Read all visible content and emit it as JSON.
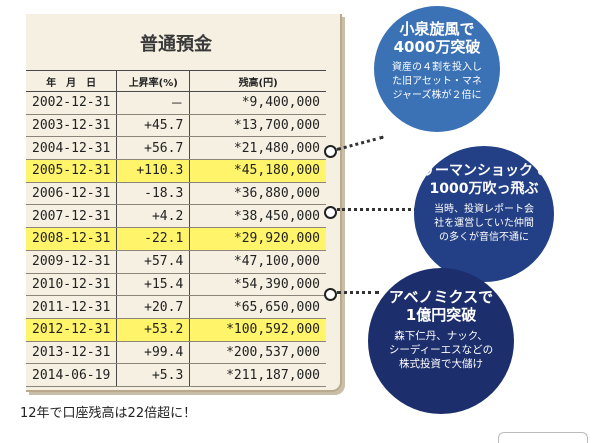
{
  "passbook": {
    "title": "普通預金",
    "headers": [
      "年　月　日",
      "上昇率(%)",
      "残高(円)"
    ],
    "rows": [
      {
        "date": "2002-12-31",
        "rate": "－",
        "balance": "*9,400,000",
        "hl": false
      },
      {
        "date": "2003-12-31",
        "rate": "+45.7",
        "balance": "*13,700,000",
        "hl": false
      },
      {
        "date": "2004-12-31",
        "rate": "+56.7",
        "balance": "*21,480,000",
        "hl": false
      },
      {
        "date": "2005-12-31",
        "rate": "+110.3",
        "balance": "*45,180,000",
        "hl": true
      },
      {
        "date": "2006-12-31",
        "rate": "-18.3",
        "balance": "*36,880,000",
        "hl": false
      },
      {
        "date": "2007-12-31",
        "rate": "+4.2",
        "balance": "*38,450,000",
        "hl": false
      },
      {
        "date": "2008-12-31",
        "rate": "-22.1",
        "balance": "*29,920,000",
        "hl": true
      },
      {
        "date": "2009-12-31",
        "rate": "+57.4",
        "balance": "*47,100,000",
        "hl": false
      },
      {
        "date": "2010-12-31",
        "rate": "+15.4",
        "balance": "*54,390,000",
        "hl": false
      },
      {
        "date": "2011-12-31",
        "rate": "+20.7",
        "balance": "*65,650,000",
        "hl": false
      },
      {
        "date": "2012-12-31",
        "rate": "+53.2",
        "balance": "*100,592,000",
        "hl": true
      },
      {
        "date": "2013-12-31",
        "rate": "+99.4",
        "balance": "*200,537,000",
        "hl": false
      },
      {
        "date": "2014-06-19",
        "rate": "+5.3",
        "balance": "*211,187,000",
        "hl": false
      }
    ]
  },
  "bubbles": {
    "b1": {
      "head": [
        "小泉旋風で",
        "4000万突破"
      ],
      "body": [
        "資産の４割を投入し",
        "た旧アセット・マネ",
        "ジャーズ株が２倍に"
      ]
    },
    "b2": {
      "head": [
        "リーマンショックで",
        "1000万吹っ飛ぶ"
      ],
      "body": [
        "当時、投資レポート会",
        "社を運営していた仲間",
        "の多くが音信不通に"
      ]
    },
    "b3": {
      "head": [
        "アベノミクスで",
        "1億円突破"
      ],
      "body": [
        "森下仁丹、ナック、",
        "シーディーエスなどの",
        "株式投資で大儲け"
      ]
    }
  },
  "caption": "12年で口座残高は22倍超に！",
  "colors": {
    "highlight": "#fff46a",
    "bubble1": "#3b72b6",
    "bubble2": "#233f86",
    "bubble3": "#1c2f6c"
  }
}
